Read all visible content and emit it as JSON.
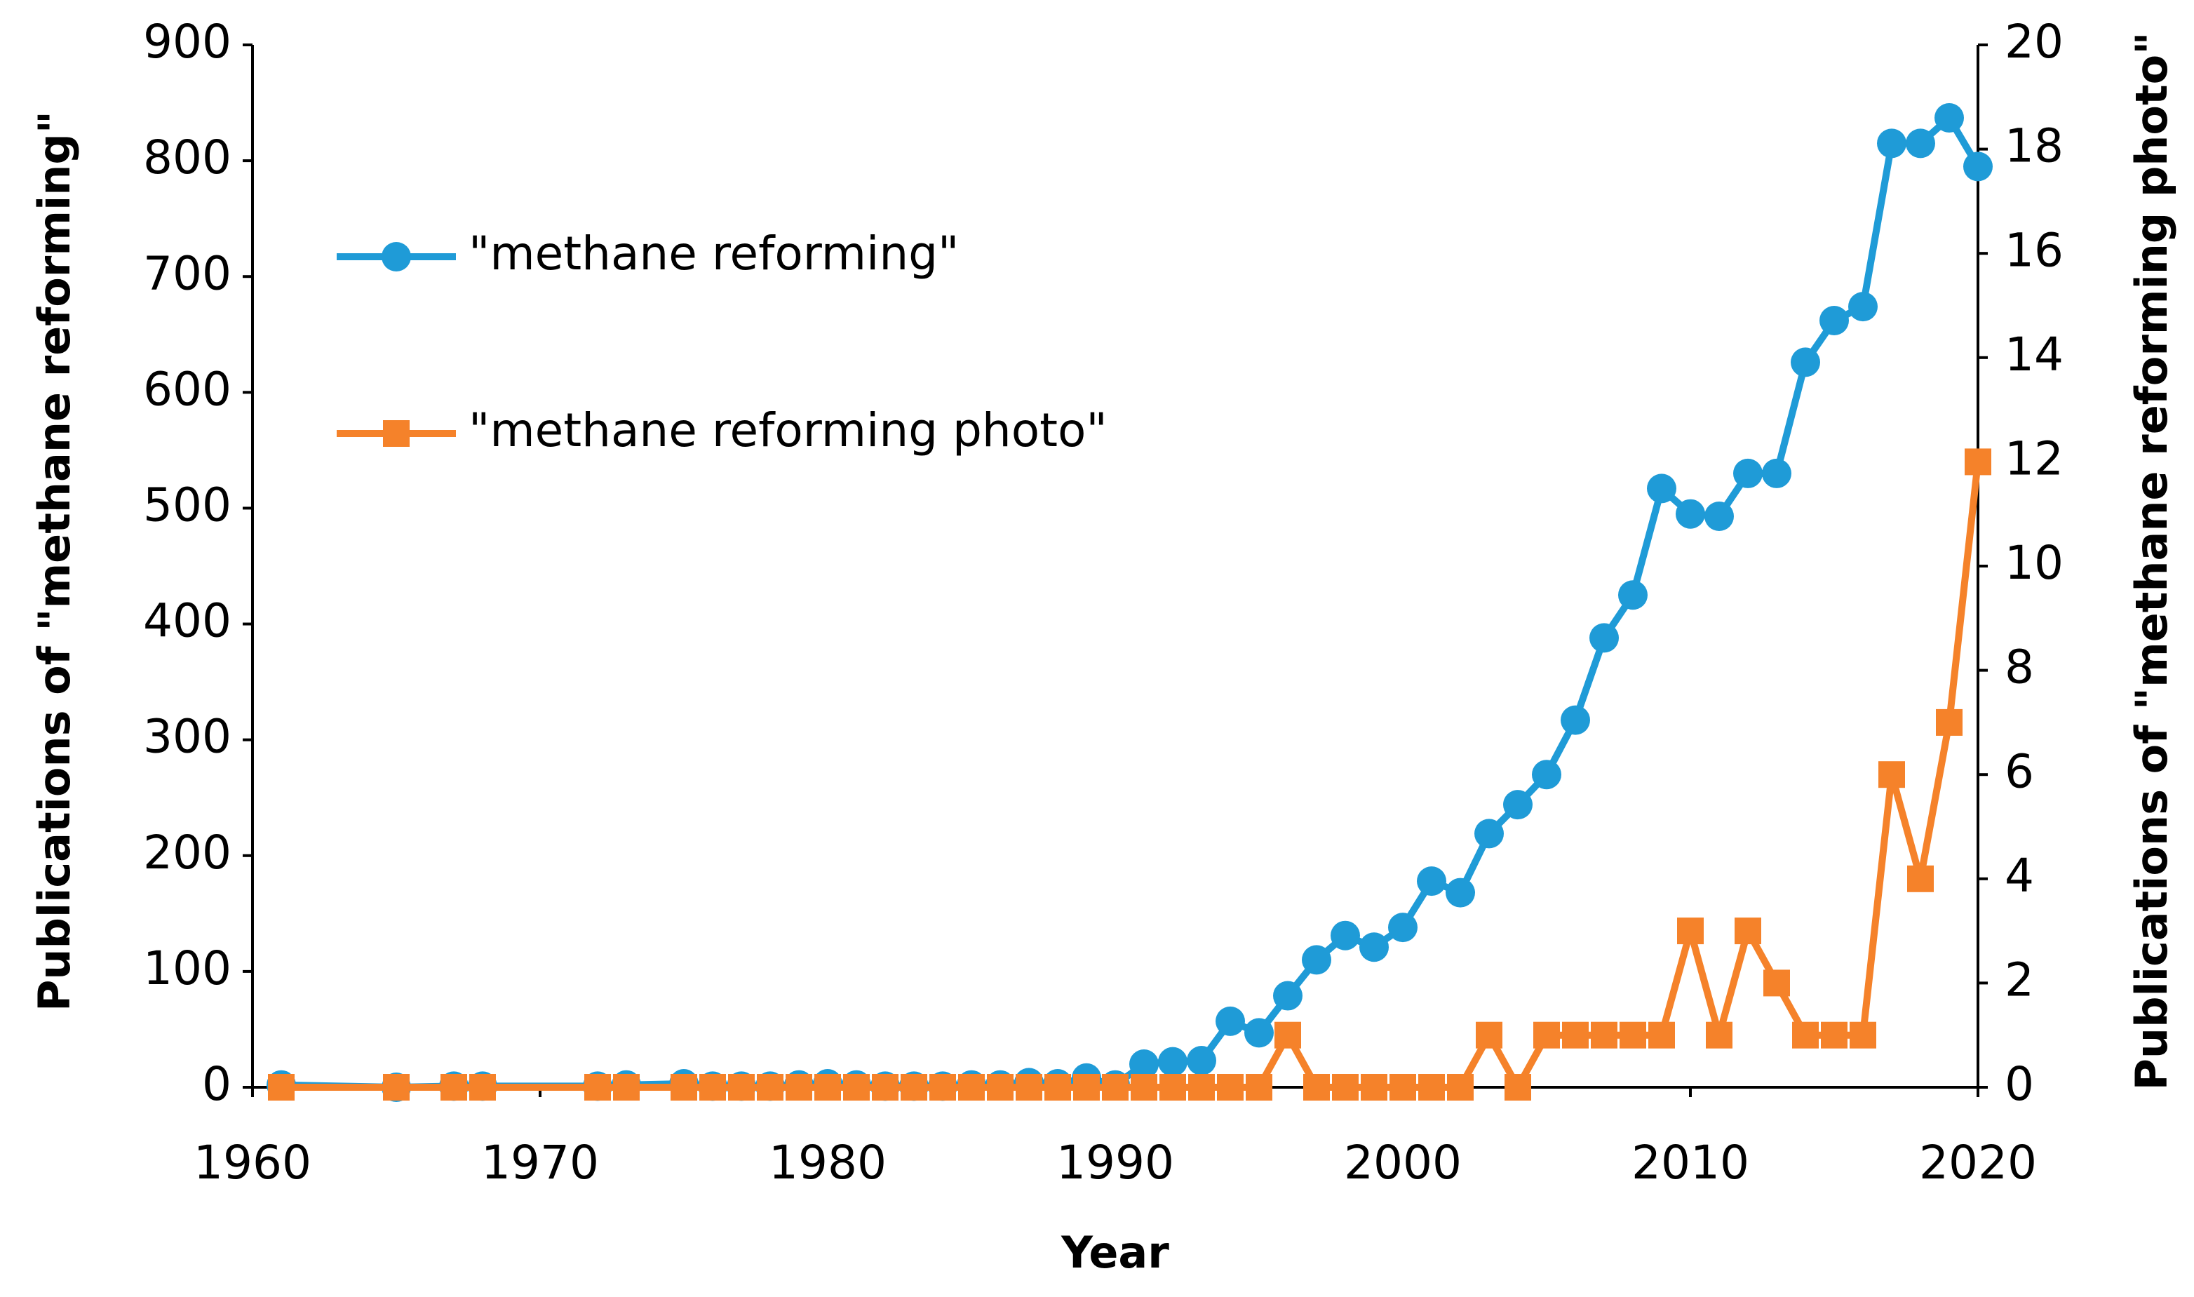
{
  "chart_data": {
    "type": "line",
    "xlabel": "Year",
    "ylabel": "Publications of \"methane reforming\"",
    "y2label": "Publications of \"methane reforming photo\"",
    "x": [
      1961,
      1965,
      1967,
      1968,
      1972,
      1973,
      1975,
      1976,
      1977,
      1978,
      1979,
      1980,
      1981,
      1982,
      1983,
      1984,
      1985,
      1986,
      1987,
      1988,
      1989,
      1990,
      1991,
      1992,
      1993,
      1994,
      1995,
      1996,
      1997,
      1998,
      1999,
      2000,
      2001,
      2002,
      2003,
      2004,
      2005,
      2006,
      2007,
      2008,
      2009,
      2010,
      2011,
      2012,
      2013,
      2014,
      2015,
      2016,
      2017,
      2018,
      2019,
      2020
    ],
    "series": [
      {
        "name": "\"methane reforming\"",
        "color": "#1f9bd7",
        "marker": "circle",
        "values": [
          2,
          0,
          1,
          1,
          1,
          2,
          3,
          1,
          1,
          1,
          2,
          3,
          2,
          1,
          1,
          1,
          2,
          2,
          4,
          3,
          8,
          2,
          20,
          22,
          23,
          57,
          47,
          79,
          110,
          131,
          121,
          138,
          178,
          168,
          219,
          244,
          270,
          317,
          388,
          425,
          517,
          495,
          493,
          530,
          530,
          626,
          662,
          674,
          815,
          815,
          837,
          795
        ]
      },
      {
        "name": "\"methane reforming photo\"",
        "color": "#f5822a",
        "marker": "square",
        "axis": "y2",
        "values": [
          0,
          0,
          0,
          0,
          0,
          0,
          0,
          0,
          0,
          0,
          0,
          0,
          0,
          0,
          0,
          0,
          0,
          0,
          0,
          0,
          0,
          0,
          0,
          0,
          0,
          0,
          0,
          1,
          0,
          0,
          0,
          0,
          0,
          0,
          1,
          0,
          1,
          1,
          1,
          1,
          1,
          3,
          1,
          3,
          2,
          1,
          1,
          1,
          6,
          4,
          7,
          12
        ]
      }
    ],
    "xlim": [
      1960,
      2020
    ],
    "xticks": [
      1960,
      1970,
      1980,
      1990,
      2000,
      2010,
      2020
    ],
    "ylim": [
      0,
      900
    ],
    "yticks": [
      0,
      100,
      200,
      300,
      400,
      500,
      600,
      700,
      800,
      900
    ],
    "y2lim": [
      0,
      20
    ],
    "y2ticks": [
      0,
      2,
      4,
      6,
      8,
      10,
      12,
      14,
      16,
      18,
      20
    ],
    "grid": false
  }
}
